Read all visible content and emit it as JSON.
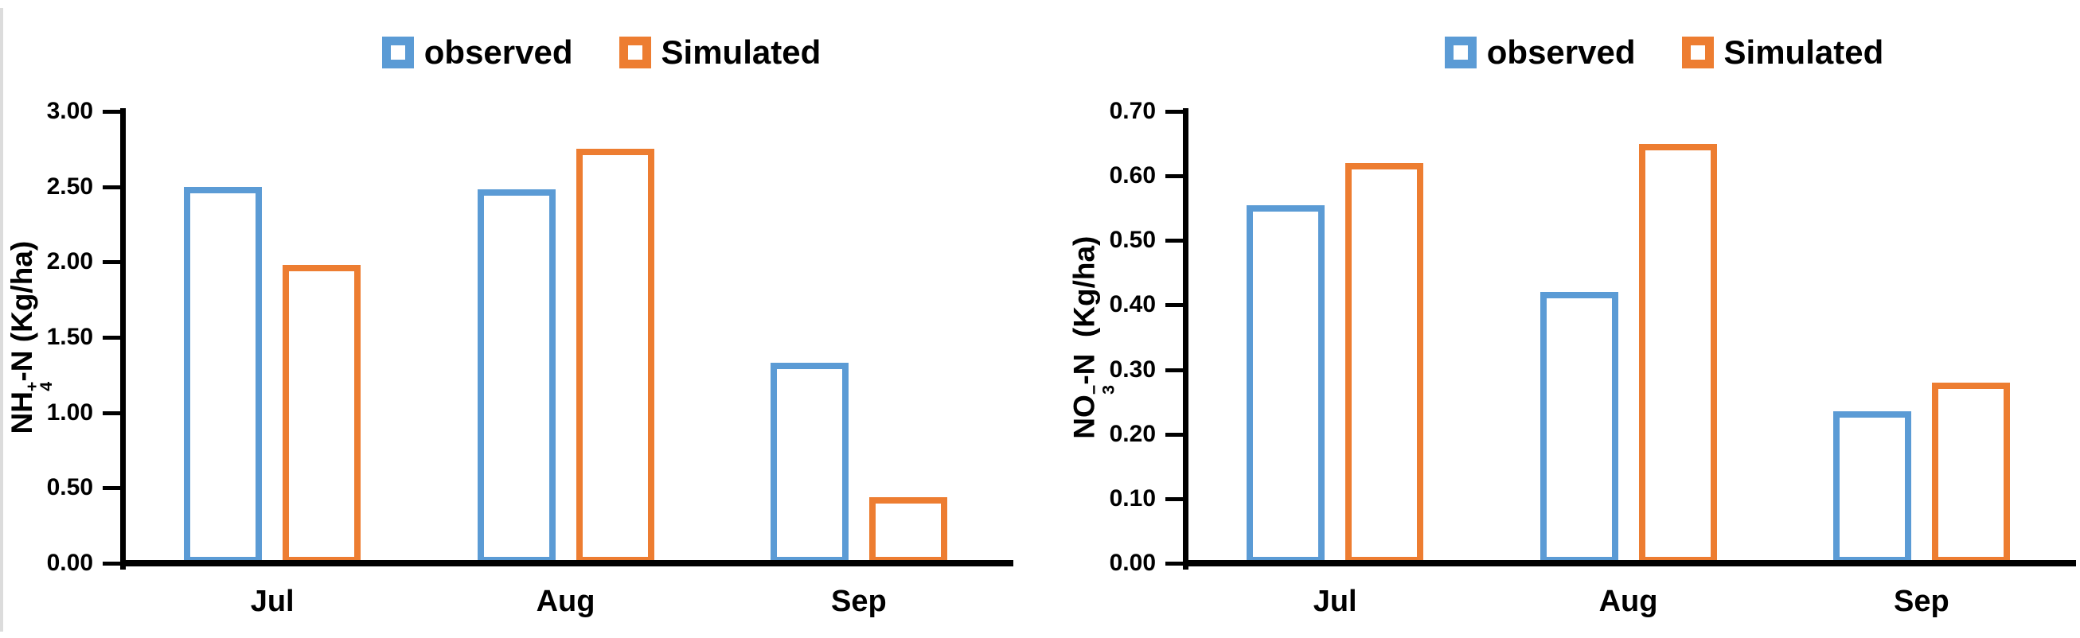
{
  "figure": {
    "background": "#ffffff",
    "divider_color": "#dcdcdc",
    "axis_color": "#000000",
    "text_color": "#000000",
    "observed_color": "#5B9BD5",
    "simulated_color": "#ED7D31"
  },
  "chart_data": [
    {
      "type": "bar",
      "title": "",
      "categories": [
        "Jul",
        "Aug",
        "Sep"
      ],
      "series": [
        {
          "name": "observed",
          "color": "#5B9BD5",
          "values": [
            2.5,
            2.48,
            1.33
          ]
        },
        {
          "name": "Simulated",
          "color": "#ED7D31",
          "values": [
            1.98,
            2.75,
            0.44
          ]
        }
      ],
      "xlabel": "",
      "ylabel": {
        "base": "NH",
        "sub": "4",
        "sup": "+",
        "suffix": "-N (Kg/ha)",
        "text": "NH₄⁺-N (Kg/ha)"
      },
      "ylim": [
        0,
        3.0
      ],
      "ytick_step": 0.5,
      "ytick_labels": [
        "3.00",
        "2.50",
        "2.00",
        "1.50",
        "1.00",
        "0.50",
        "0.00"
      ],
      "legend_position": "top",
      "grid": false
    },
    {
      "type": "bar",
      "title": "",
      "categories": [
        "Jul",
        "Aug",
        "Sep"
      ],
      "series": [
        {
          "name": "observed",
          "color": "#5B9BD5",
          "values": [
            0.555,
            0.42,
            0.235
          ]
        },
        {
          "name": "Simulated",
          "color": "#ED7D31",
          "values": [
            0.62,
            0.65,
            0.28
          ]
        }
      ],
      "xlabel": "",
      "ylabel": {
        "base": "NO",
        "sub": "3",
        "sup": "−",
        "suffix": "-N  (Kg/ha)",
        "text": "NO₃⁻-N (Kg/ha)"
      },
      "ylim": [
        0,
        0.7
      ],
      "ytick_step": 0.1,
      "ytick_labels": [
        "0.70",
        "0.60",
        "0.50",
        "0.40",
        "0.30",
        "0.20",
        "0.10",
        "0.00"
      ],
      "legend_position": "top",
      "grid": false
    }
  ]
}
